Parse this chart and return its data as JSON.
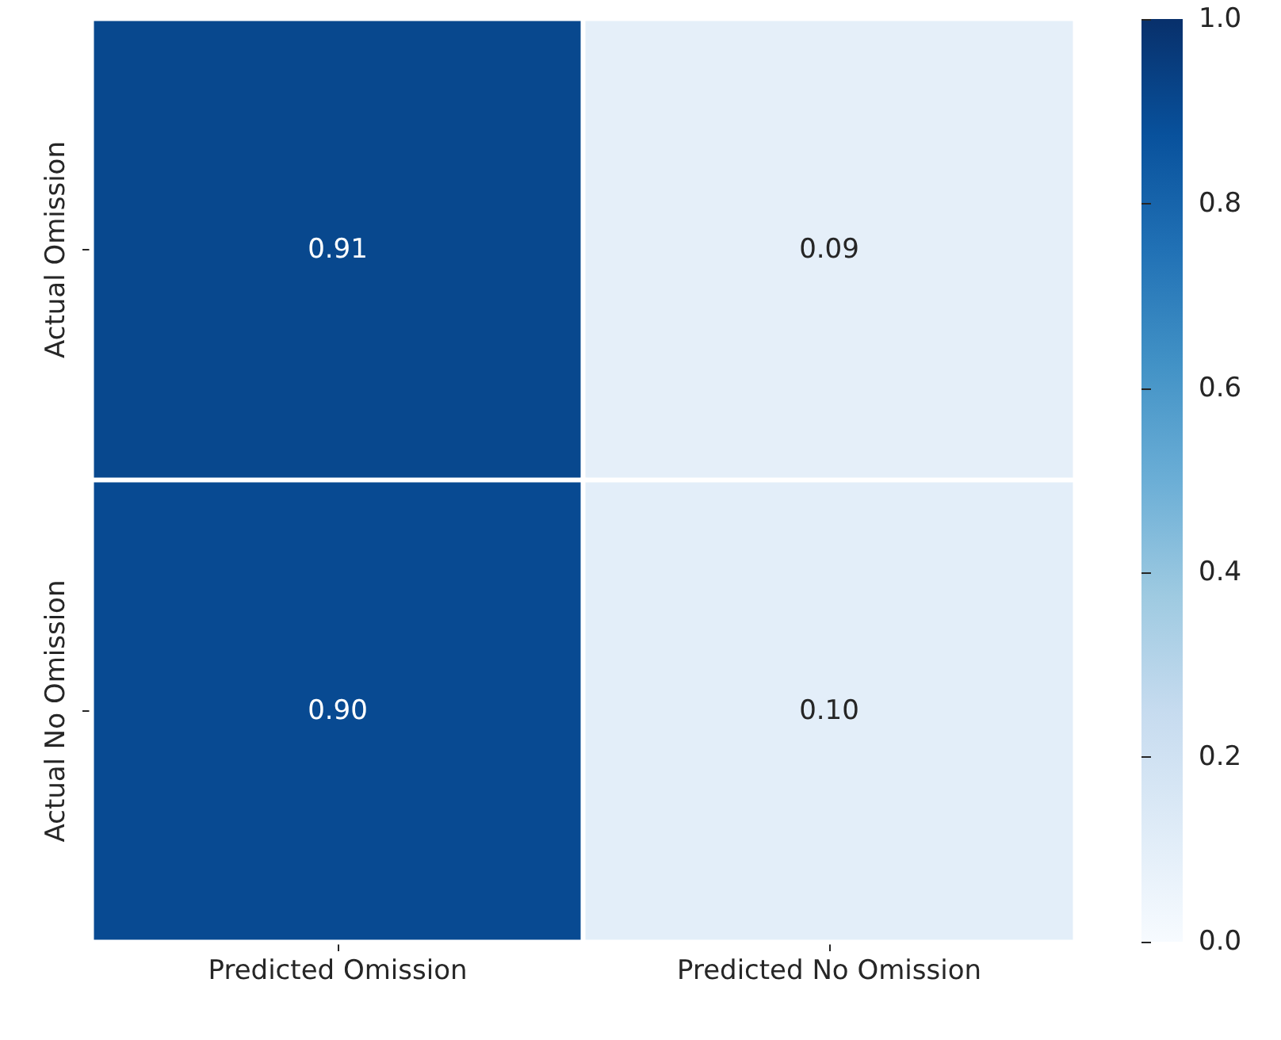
{
  "chart_data": {
    "type": "heatmap",
    "categories": [
      "Predicted Omission",
      "Predicted No Omission"
    ],
    "y_categories": [
      "Actual Omission",
      "Actual No Omission"
    ],
    "cells": [
      [
        0.91,
        0.09
      ],
      [
        0.9,
        0.1
      ]
    ],
    "cell_labels": [
      [
        "0.91",
        "0.09"
      ],
      [
        "0.90",
        "0.10"
      ]
    ],
    "clim": [
      0,
      1
    ],
    "cticks": [
      {
        "value": 0,
        "label": "0.0"
      },
      0.2,
      0.4,
      0.6,
      0.8,
      {
        "value": 1,
        "label": "1.0"
      }
    ]
  }
}
